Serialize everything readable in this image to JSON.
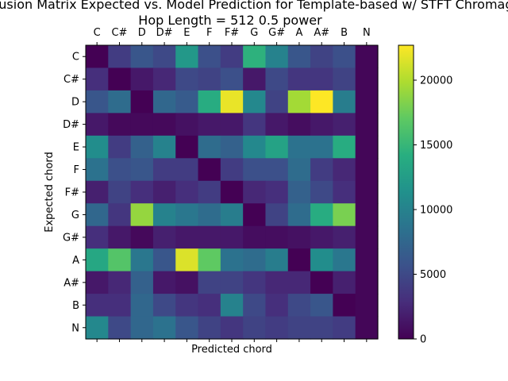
{
  "chart_data": {
    "type": "heatmap",
    "title_line1": "Confusion Matrix Expected vs. Model Prediction for Template-based w/ STFT Chromagram",
    "title_line2": "Hop Length = 512 0.5 power",
    "xlabel": "Predicted chord",
    "ylabel": "Expected chord",
    "x_categories": [
      "C",
      "C#",
      "D",
      "D#",
      "E",
      "F",
      "F#",
      "G",
      "G#",
      "A",
      "A#",
      "B",
      "N"
    ],
    "y_categories": [
      "C",
      "C#",
      "D",
      "D#",
      "E",
      "F",
      "F#",
      "G",
      "G#",
      "A",
      "A#",
      "B",
      "N"
    ],
    "x_tick_position": "top",
    "colormap": "viridis",
    "colorbar": {
      "min": 0,
      "max": 22700,
      "ticks": [
        0,
        5000,
        10000,
        15000,
        20000
      ]
    },
    "values": [
      [
        0,
        4000,
        6000,
        5000,
        12000,
        5500,
        4000,
        14500,
        10000,
        6000,
        4500,
        5500,
        300
      ],
      [
        3000,
        0,
        1500,
        2500,
        5000,
        4500,
        5500,
        1500,
        5000,
        3500,
        3500,
        4500,
        300
      ],
      [
        6000,
        8000,
        0,
        7500,
        6500,
        14000,
        22000,
        10500,
        4500,
        19500,
        22700,
        9500,
        300
      ],
      [
        1500,
        500,
        500,
        500,
        1000,
        1500,
        1500,
        3500,
        1500,
        800,
        1500,
        2000,
        300
      ],
      [
        11000,
        4000,
        7000,
        10000,
        0,
        8000,
        7000,
        10500,
        13000,
        8500,
        8500,
        14000,
        300
      ],
      [
        8500,
        5500,
        6000,
        4000,
        4000,
        0,
        4000,
        5500,
        5500,
        8000,
        4000,
        2500,
        300
      ],
      [
        2000,
        4500,
        3000,
        2000,
        3000,
        4000,
        0,
        2500,
        3000,
        7000,
        5000,
        3000,
        300
      ],
      [
        7500,
        3500,
        19000,
        10000,
        9000,
        8000,
        9500,
        0,
        4500,
        8000,
        14000,
        18000,
        300
      ],
      [
        3000,
        1500,
        500,
        2000,
        1500,
        1500,
        1500,
        800,
        800,
        1000,
        1500,
        2000,
        300
      ],
      [
        13500,
        16500,
        9000,
        6000,
        21500,
        17000,
        8500,
        8000,
        9500,
        0,
        11000,
        9000,
        300
      ],
      [
        1500,
        2500,
        7000,
        1500,
        1000,
        4500,
        4500,
        3500,
        2500,
        2500,
        0,
        2000,
        300
      ],
      [
        3000,
        3000,
        7500,
        5000,
        3500,
        3000,
        10000,
        5000,
        3000,
        5000,
        6000,
        0,
        300
      ],
      [
        10500,
        5000,
        7500,
        8500,
        6000,
        4500,
        3500,
        4500,
        4000,
        4500,
        4500,
        4000,
        300
      ]
    ]
  }
}
